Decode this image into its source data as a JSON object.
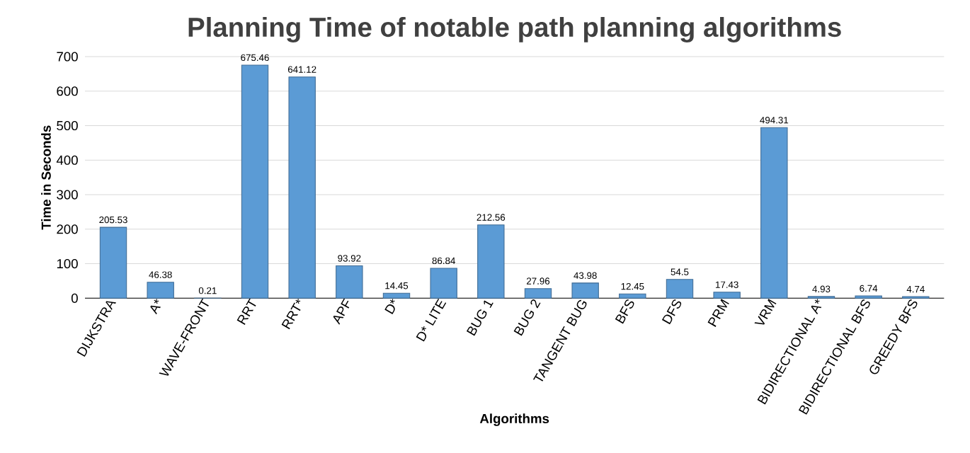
{
  "chart_data": {
    "type": "bar",
    "title": "Planning Time of notable path planning algorithms",
    "xlabel": "Algorithms",
    "ylabel": "Time in Seconds",
    "categories": [
      "DIJKSTRA",
      "A*",
      "WAVE-FRONT",
      "RRT",
      "RRT*",
      "APF",
      "D*",
      "D* LITE",
      "BUG 1",
      "BUG 2",
      "TANGENT BUG",
      "BFS",
      "DFS",
      "PRM",
      "VRM",
      "BIDIRECTIONAL A*",
      "BIDIRECTIONAL BFS",
      "GREEDY BFS"
    ],
    "values": [
      205.53,
      46.38,
      0.21,
      675.46,
      641.12,
      93.92,
      14.45,
      86.84,
      212.56,
      27.96,
      43.98,
      12.45,
      54.5,
      17.43,
      494.31,
      4.93,
      6.74,
      4.74
    ],
    "color": "#5b9bd5",
    "ylim": [
      0,
      700
    ],
    "yticks": [
      0,
      100,
      200,
      300,
      400,
      500,
      600,
      700
    ],
    "grid": "y",
    "data_labels": true
  }
}
